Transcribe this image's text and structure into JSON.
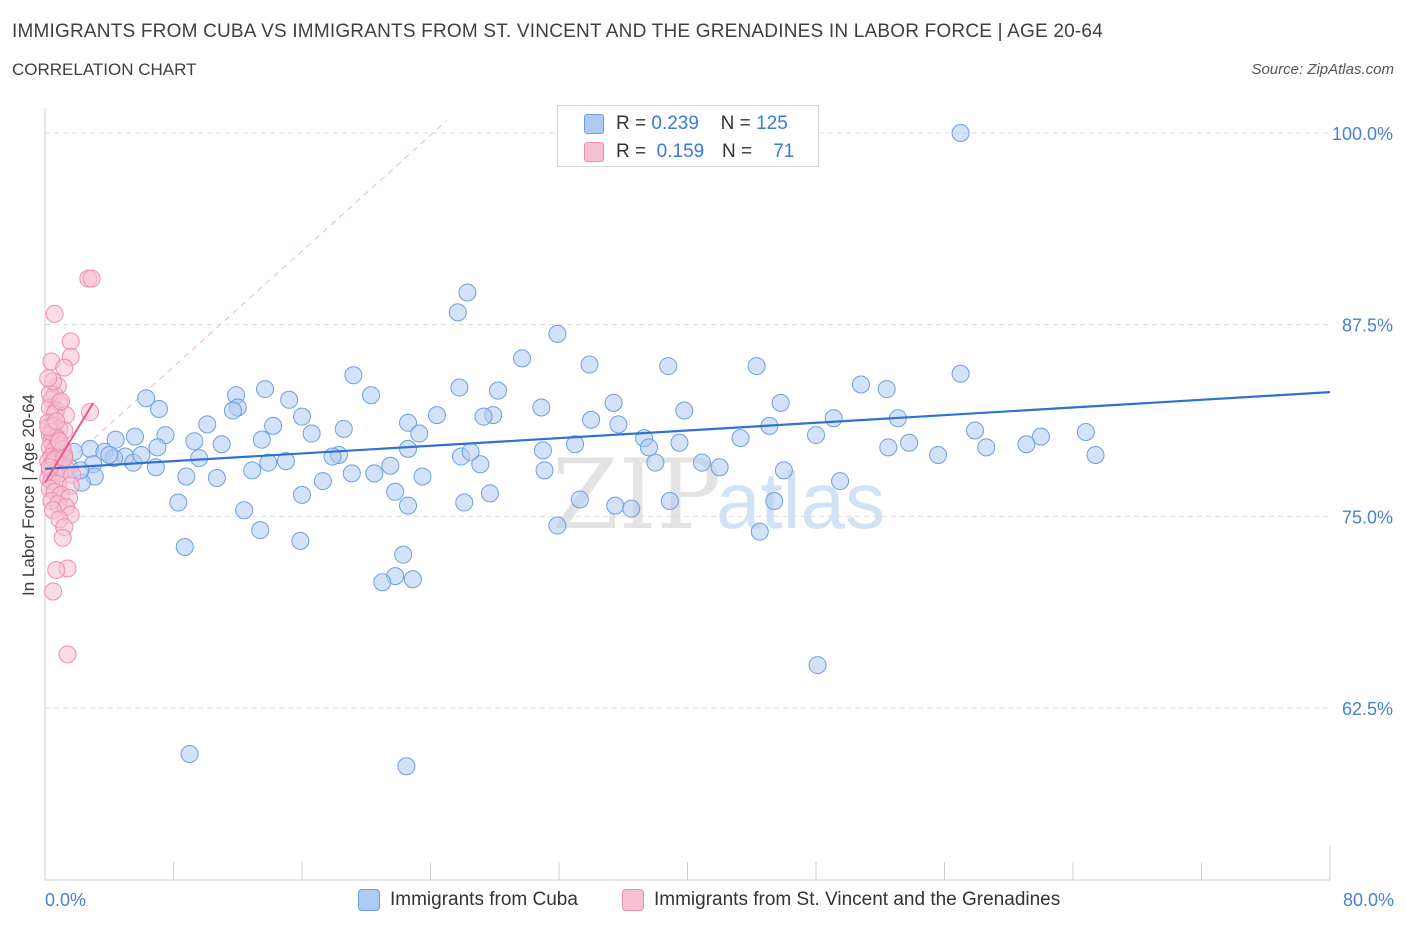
{
  "header": {
    "title": "IMMIGRANTS FROM CUBA VS IMMIGRANTS FROM ST. VINCENT AND THE GRENADINES IN LABOR FORCE | AGE 20-64",
    "subtitle": "CORRELATION CHART",
    "source": "Source: ZipAtlas.com"
  },
  "watermark": {
    "part1": "ZIP",
    "part2": "atlas"
  },
  "legend": {
    "rows": [
      {
        "r_label": "R =",
        "r_value": "0.239",
        "n_label": "N =",
        "n_value": "125"
      },
      {
        "r_label": "R =",
        "r_value": "0.159",
        "n_label": "N =",
        "n_value": "71"
      }
    ]
  },
  "bottom_legend": {
    "series1": "Immigrants from Cuba",
    "series2": "Immigrants from St. Vincent and the Grenadines"
  },
  "colors": {
    "series1_fill": "#aecbf3",
    "series1_stroke": "#6d9fe0",
    "series1_line": "#2f72d0",
    "series2_fill": "#f7bfd2",
    "series2_stroke": "#ea8fb0",
    "series2_line": "#e8578b",
    "tick_text": "#4a7fd4"
  },
  "chart_data": {
    "type": "scatter",
    "ylabel": "In Labor Force | Age 20-64",
    "xlim": [
      0,
      80
    ],
    "ylim": [
      50.0,
      101.0
    ],
    "x_tick_labels": [
      "0.0%",
      "80.0%"
    ],
    "y_ticks": [
      {
        "value": 100.0,
        "label": "100.0%"
      },
      {
        "value": 87.5,
        "label": "87.5%"
      },
      {
        "value": 75.0,
        "label": "75.0%"
      },
      {
        "value": 62.5,
        "label": "62.5%"
      }
    ],
    "grid": true,
    "series": [
      {
        "name": "Immigrants from Cuba",
        "trend": {
          "x": [
            0.0,
            80.0
          ],
          "y": [
            78.1,
            83.1
          ]
        },
        "points": [
          [
            57.0,
            100.0
          ],
          [
            26.3,
            89.6
          ],
          [
            25.7,
            88.3
          ],
          [
            31.9,
            86.9
          ],
          [
            29.7,
            85.3
          ],
          [
            33.9,
            84.9
          ],
          [
            44.3,
            84.8
          ],
          [
            38.8,
            84.8
          ],
          [
            57.0,
            84.3
          ],
          [
            19.2,
            84.2
          ],
          [
            50.8,
            83.6
          ],
          [
            25.8,
            83.4
          ],
          [
            52.4,
            83.3
          ],
          [
            28.2,
            83.2
          ],
          [
            13.7,
            83.3
          ],
          [
            11.9,
            82.9
          ],
          [
            20.3,
            82.9
          ],
          [
            6.3,
            82.7
          ],
          [
            15.2,
            82.6
          ],
          [
            35.4,
            82.4
          ],
          [
            45.8,
            82.4
          ],
          [
            30.9,
            82.1
          ],
          [
            12.0,
            82.1
          ],
          [
            11.7,
            81.9
          ],
          [
            7.1,
            82.0
          ],
          [
            39.8,
            81.9
          ],
          [
            27.9,
            81.6
          ],
          [
            16.0,
            81.5
          ],
          [
            27.3,
            81.5
          ],
          [
            53.1,
            81.4
          ],
          [
            49.1,
            81.4
          ],
          [
            22.6,
            81.1
          ],
          [
            10.1,
            81.0
          ],
          [
            35.7,
            81.0
          ],
          [
            14.2,
            80.9
          ],
          [
            45.1,
            80.9
          ],
          [
            57.9,
            80.6
          ],
          [
            64.8,
            80.5
          ],
          [
            48.0,
            80.3
          ],
          [
            16.6,
            80.4
          ],
          [
            23.3,
            80.4
          ],
          [
            7.5,
            80.3
          ],
          [
            5.6,
            80.2
          ],
          [
            43.3,
            80.1
          ],
          [
            37.3,
            80.1
          ],
          [
            4.4,
            80.0
          ],
          [
            9.3,
            79.9
          ],
          [
            11.0,
            79.7
          ],
          [
            33.0,
            79.7
          ],
          [
            39.5,
            79.8
          ],
          [
            53.8,
            79.8
          ],
          [
            61.1,
            79.7
          ],
          [
            2.8,
            79.4
          ],
          [
            22.6,
            79.4
          ],
          [
            31.0,
            79.3
          ],
          [
            1.8,
            79.2
          ],
          [
            3.7,
            79.2
          ],
          [
            5.0,
            78.9
          ],
          [
            18.3,
            79.0
          ],
          [
            25.9,
            78.9
          ],
          [
            17.9,
            78.9
          ],
          [
            4.3,
            78.8
          ],
          [
            13.9,
            78.5
          ],
          [
            38.0,
            78.5
          ],
          [
            40.9,
            78.5
          ],
          [
            27.1,
            78.4
          ],
          [
            21.5,
            78.3
          ],
          [
            12.9,
            78.0
          ],
          [
            31.1,
            78.0
          ],
          [
            1.5,
            78.2
          ],
          [
            20.5,
            77.8
          ],
          [
            6.9,
            78.2
          ],
          [
            3.0,
            78.4
          ],
          [
            23.5,
            77.6
          ],
          [
            19.1,
            77.8
          ],
          [
            3.1,
            77.6
          ],
          [
            8.8,
            77.6
          ],
          [
            17.3,
            77.3
          ],
          [
            2.3,
            77.2
          ],
          [
            27.7,
            76.5
          ],
          [
            49.5,
            77.3
          ],
          [
            10.7,
            77.5
          ],
          [
            21.8,
            76.6
          ],
          [
            16.0,
            76.4
          ],
          [
            38.9,
            76.0
          ],
          [
            33.3,
            76.1
          ],
          [
            45.4,
            76.0
          ],
          [
            8.3,
            75.9
          ],
          [
            26.1,
            75.9
          ],
          [
            35.5,
            75.7
          ],
          [
            22.6,
            75.7
          ],
          [
            36.5,
            75.5
          ],
          [
            12.4,
            75.4
          ],
          [
            31.9,
            74.4
          ],
          [
            44.5,
            74.0
          ],
          [
            13.4,
            74.1
          ],
          [
            15.9,
            73.4
          ],
          [
            8.7,
            73.0
          ],
          [
            22.3,
            72.5
          ],
          [
            21.8,
            71.1
          ],
          [
            21.0,
            70.7
          ],
          [
            22.9,
            70.9
          ],
          [
            48.1,
            65.3
          ],
          [
            9.0,
            59.5
          ],
          [
            22.5,
            58.7
          ],
          [
            4.0,
            79.0
          ],
          [
            7.0,
            79.5
          ],
          [
            13.5,
            80.0
          ],
          [
            18.6,
            80.7
          ],
          [
            24.4,
            81.6
          ],
          [
            34.0,
            81.3
          ],
          [
            37.6,
            79.5
          ],
          [
            46.0,
            78.0
          ],
          [
            55.6,
            79.0
          ],
          [
            58.6,
            79.5
          ],
          [
            62.0,
            80.2
          ],
          [
            65.4,
            79.0
          ],
          [
            2.2,
            78.0
          ],
          [
            5.5,
            78.5
          ],
          [
            6.0,
            79.0
          ],
          [
            9.6,
            78.8
          ],
          [
            15.0,
            78.6
          ],
          [
            26.5,
            79.2
          ],
          [
            42.0,
            78.2
          ],
          [
            52.5,
            79.5
          ]
        ]
      },
      {
        "name": "Immigrants from St. Vincent and the Grenadines",
        "trend": {
          "x": [
            0.0,
            3.0
          ],
          "y": [
            77.2,
            82.4
          ]
        },
        "points": [
          [
            2.7,
            90.5
          ],
          [
            2.9,
            90.5
          ],
          [
            0.6,
            88.2
          ],
          [
            1.6,
            86.4
          ],
          [
            1.6,
            85.4
          ],
          [
            0.4,
            85.1
          ],
          [
            1.2,
            84.7
          ],
          [
            0.8,
            83.5
          ],
          [
            0.6,
            82.9
          ],
          [
            0.4,
            82.6
          ],
          [
            0.9,
            82.4
          ],
          [
            0.3,
            82.1
          ],
          [
            0.7,
            81.9
          ],
          [
            0.6,
            81.7
          ],
          [
            2.8,
            81.8
          ],
          [
            1.3,
            81.6
          ],
          [
            0.2,
            81.1
          ],
          [
            0.5,
            80.9
          ],
          [
            0.9,
            80.7
          ],
          [
            1.2,
            80.6
          ],
          [
            0.3,
            80.3
          ],
          [
            0.7,
            80.2
          ],
          [
            0.4,
            79.9
          ],
          [
            0.8,
            79.7
          ],
          [
            0.3,
            79.5
          ],
          [
            0.6,
            79.3
          ],
          [
            0.9,
            79.1
          ],
          [
            1.2,
            79.0
          ],
          [
            0.4,
            78.9
          ],
          [
            0.7,
            78.8
          ],
          [
            0.2,
            78.6
          ],
          [
            0.5,
            78.5
          ],
          [
            1.0,
            78.3
          ],
          [
            1.3,
            78.1
          ],
          [
            0.3,
            78.0
          ],
          [
            0.6,
            77.9
          ],
          [
            0.9,
            77.8
          ],
          [
            1.7,
            77.7
          ],
          [
            0.2,
            77.5
          ],
          [
            0.4,
            77.3
          ],
          [
            0.8,
            77.1
          ],
          [
            1.6,
            77.0
          ],
          [
            0.3,
            76.8
          ],
          [
            0.6,
            76.6
          ],
          [
            1.0,
            76.4
          ],
          [
            1.5,
            76.2
          ],
          [
            0.4,
            76.0
          ],
          [
            0.8,
            75.8
          ],
          [
            1.3,
            75.6
          ],
          [
            0.5,
            75.4
          ],
          [
            1.6,
            75.1
          ],
          [
            0.9,
            74.8
          ],
          [
            1.2,
            74.3
          ],
          [
            1.1,
            73.6
          ],
          [
            1.4,
            71.6
          ],
          [
            0.7,
            71.5
          ],
          [
            0.5,
            70.1
          ],
          [
            1.4,
            66.0
          ],
          [
            0.3,
            83.0
          ],
          [
            0.5,
            83.8
          ],
          [
            0.2,
            84.0
          ],
          [
            0.8,
            80.0
          ],
          [
            0.4,
            80.5
          ],
          [
            1.1,
            79.4
          ],
          [
            0.6,
            78.7
          ],
          [
            0.3,
            78.2
          ],
          [
            1.2,
            78.8
          ],
          [
            0.9,
            79.9
          ],
          [
            0.2,
            80.8
          ],
          [
            0.7,
            81.2
          ],
          [
            1.0,
            82.5
          ]
        ]
      }
    ]
  }
}
